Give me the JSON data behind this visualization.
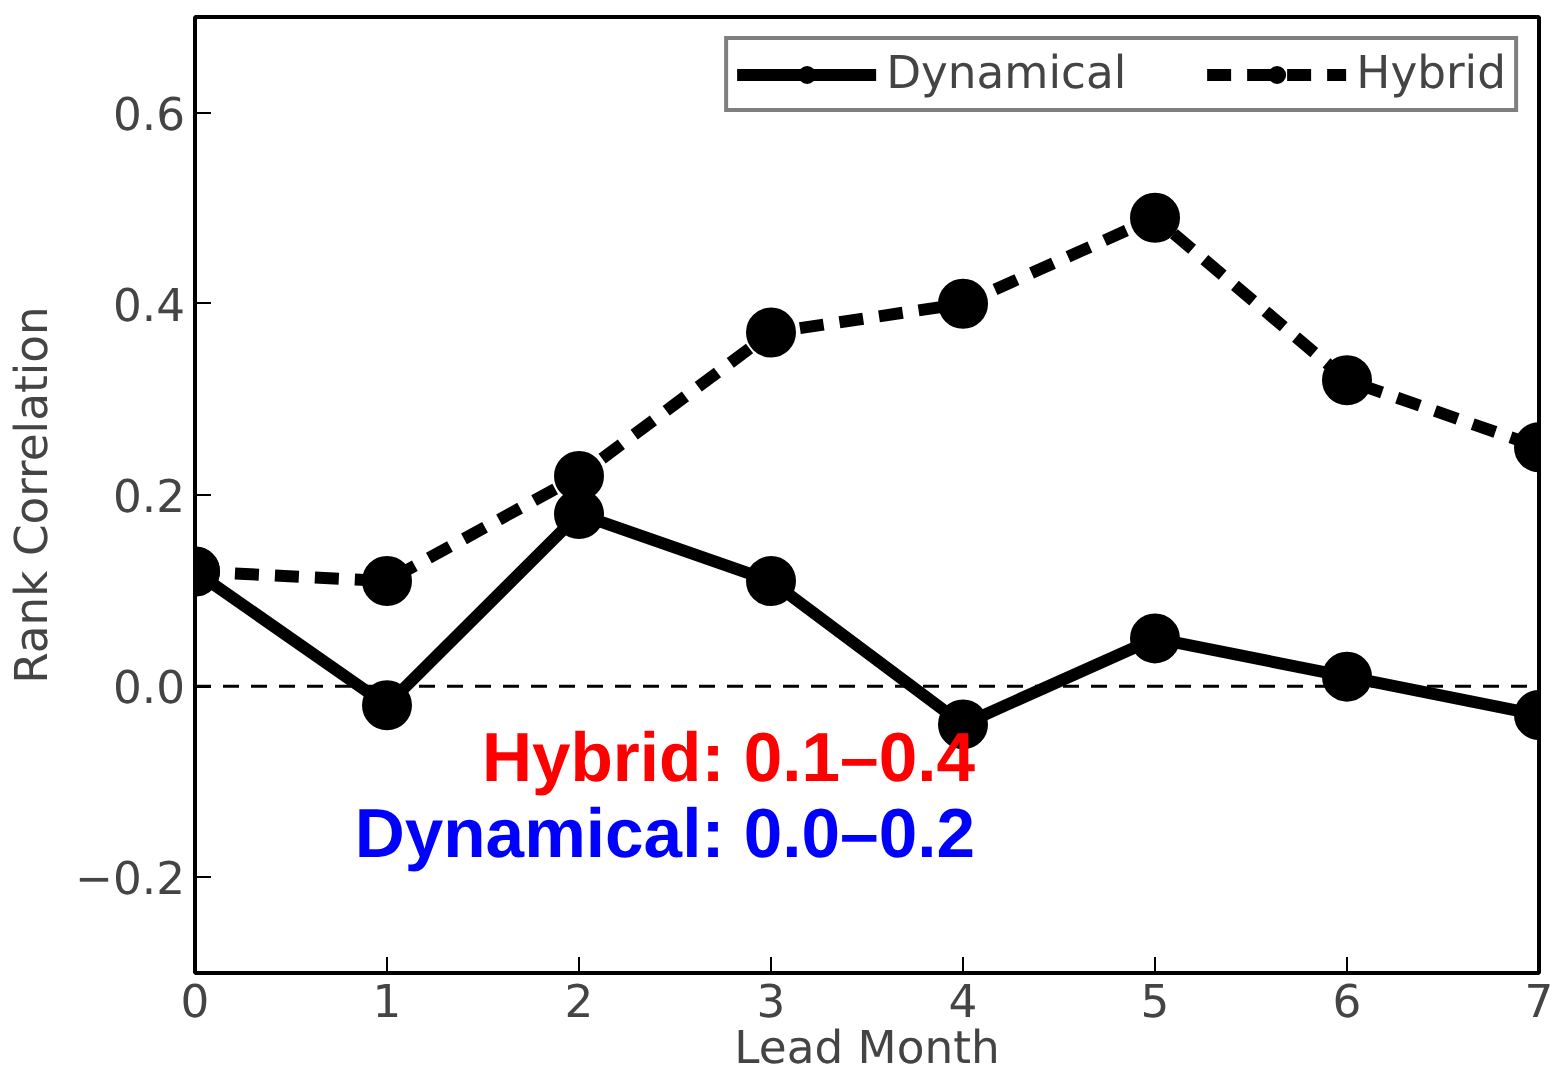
{
  "chart_data": {
    "type": "line",
    "xlabel": "Lead Month",
    "ylabel": "Rank Correlation",
    "x": [
      0,
      1,
      2,
      3,
      4,
      5,
      6,
      7
    ],
    "series": [
      {
        "name": "Dynamical",
        "color": "#000000",
        "line_style": "solid",
        "values": [
          0.12,
          -0.02,
          0.18,
          0.11,
          -0.04,
          0.05,
          0.01,
          -0.03
        ]
      },
      {
        "name": "Hybrid",
        "color": "#000000",
        "line_style": "dashed",
        "values": [
          0.12,
          0.11,
          0.22,
          0.37,
          0.4,
          0.49,
          0.32,
          0.25
        ]
      }
    ],
    "xlim": [
      0,
      7
    ],
    "ylim": [
      -0.3,
      0.7
    ],
    "xticks": [
      0,
      1,
      2,
      3,
      4,
      5,
      6,
      7
    ],
    "yticks": [
      {
        "value": -0.2,
        "label": "−0.2"
      },
      {
        "value": 0.0,
        "label": "0.0"
      },
      {
        "value": 0.2,
        "label": "0.2"
      },
      {
        "value": 0.4,
        "label": "0.4"
      },
      {
        "value": 0.6,
        "label": "0.6"
      }
    ],
    "ref_lines": [
      {
        "axis": "y",
        "value": 0,
        "label": null,
        "color": "#000000",
        "line_style": "dashed"
      }
    ],
    "annotations": [
      "Hybrid: 0.1–0.4",
      "Dynamical: 0.0–0.2"
    ],
    "marker": "circle",
    "grid": false,
    "legend": "top right"
  }
}
